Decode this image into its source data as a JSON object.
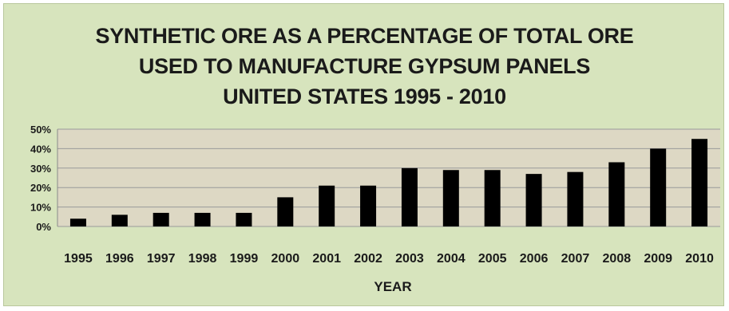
{
  "chart_data": {
    "type": "bar",
    "title_lines": [
      "SYNTHETIC ORE AS A PERCENTAGE OF TOTAL ORE",
      "USED TO MANUFACTURE GYPSUM PANELS",
      "UNITED STATES 1995 - 2010"
    ],
    "xlabel": "YEAR",
    "ylabel": "",
    "categories": [
      "1995",
      "1996",
      "1997",
      "1998",
      "1999",
      "2000",
      "2001",
      "2002",
      "2003",
      "2004",
      "2005",
      "2006",
      "2007",
      "2008",
      "2009",
      "2010"
    ],
    "values": [
      4,
      6,
      7,
      7,
      7,
      15,
      21,
      21,
      30,
      29,
      29,
      27,
      28,
      33,
      40,
      45
    ],
    "y_ticks": [
      0,
      10,
      20,
      30,
      40,
      50
    ],
    "y_tick_format": "{v}%",
    "ylim": [
      0,
      50
    ],
    "grid": true,
    "legend": "none",
    "colors": {
      "background": "#d7e4bd",
      "plot_area": "#ddd8c4",
      "bar": "#000000",
      "grid": "#9a9a9a",
      "text": "#1a1a1a"
    }
  }
}
